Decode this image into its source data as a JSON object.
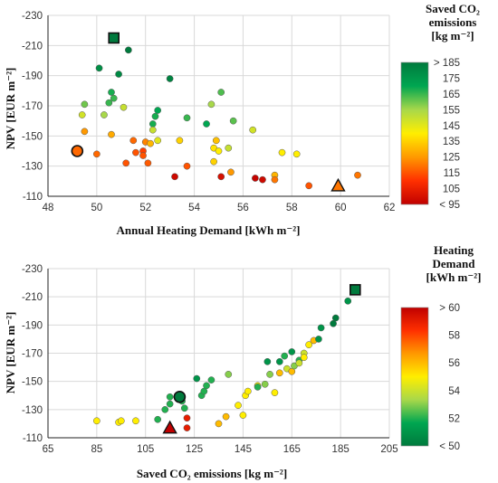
{
  "chart_data": [
    {
      "type": "scatter",
      "xlabel": "Annual Heating Demand [kWh m⁻²]",
      "ylabel": "NPV [EUR m⁻²]",
      "xlim": [
        48,
        62
      ],
      "ylim": [
        -110,
        -230
      ],
      "x_ticks": [
        48,
        50,
        52,
        54,
        56,
        58,
        60,
        62
      ],
      "y_ticks": [
        -230,
        -210,
        -190,
        -170,
        -150,
        -130,
        -110
      ],
      "x_tick_labels": [
        "48",
        "50",
        "52",
        "54",
        "56",
        "58",
        "60",
        "62"
      ],
      "y_tick_labels": [
        "-230",
        "-210",
        "-190",
        "-170",
        "-150",
        "-130",
        "-110"
      ],
      "grid": true,
      "color_variable": "Saved CO₂ emissions",
      "colorbar": {
        "title_lines": [
          "Saved CO₂",
          "emissions",
          "[kg m⁻²]"
        ],
        "range": [
          95,
          185
        ],
        "ticks": [
          95,
          105,
          115,
          125,
          135,
          145,
          155,
          165,
          175,
          185
        ],
        "tick_labels": [
          "< 95",
          "105",
          "115",
          "125",
          "135",
          "145",
          "155",
          "165",
          "175",
          "> 185"
        ],
        "colors": [
          "#c00000",
          "#ff3000",
          "#ff9900",
          "#ffee00",
          "#a8d84a",
          "#00a651",
          "#007a3d"
        ]
      },
      "points": [
        {
          "x": 51.3,
          "y": -207,
          "c": 185
        },
        {
          "x": 50.1,
          "y": -195,
          "c": 178
        },
        {
          "x": 50.9,
          "y": -191,
          "c": 180
        },
        {
          "x": 53.0,
          "y": -188,
          "c": 182
        },
        {
          "x": 50.6,
          "y": -179,
          "c": 168
        },
        {
          "x": 50.7,
          "y": -175,
          "c": 165
        },
        {
          "x": 55.1,
          "y": -179,
          "c": 163
        },
        {
          "x": 49.5,
          "y": -171,
          "c": 160
        },
        {
          "x": 50.5,
          "y": -172,
          "c": 165
        },
        {
          "x": 51.1,
          "y": -169,
          "c": 150
        },
        {
          "x": 52.5,
          "y": -167,
          "c": 170
        },
        {
          "x": 52.4,
          "y": -163,
          "c": 168
        },
        {
          "x": 53.7,
          "y": -162,
          "c": 165
        },
        {
          "x": 55.6,
          "y": -160,
          "c": 162
        },
        {
          "x": 49.4,
          "y": -164,
          "c": 148
        },
        {
          "x": 50.3,
          "y": -164,
          "c": 155
        },
        {
          "x": 54.7,
          "y": -171,
          "c": 155
        },
        {
          "x": 54.5,
          "y": -158,
          "c": 170
        },
        {
          "x": 52.3,
          "y": -158,
          "c": 168
        },
        {
          "x": 52.3,
          "y": -154,
          "c": 150
        },
        {
          "x": 56.4,
          "y": -154,
          "c": 148
        },
        {
          "x": 49.5,
          "y": -153,
          "c": 125
        },
        {
          "x": 50.6,
          "y": -151,
          "c": 128
        },
        {
          "x": 52.0,
          "y": -146,
          "c": 122
        },
        {
          "x": 51.5,
          "y": -147,
          "c": 118
        },
        {
          "x": 52.2,
          "y": -145,
          "c": 130
        },
        {
          "x": 52.5,
          "y": -147,
          "c": 145
        },
        {
          "x": 53.4,
          "y": -147,
          "c": 135
        },
        {
          "x": 54.9,
          "y": -147,
          "c": 132
        },
        {
          "x": 54.8,
          "y": -142,
          "c": 138
        },
        {
          "x": 55.0,
          "y": -140,
          "c": 140
        },
        {
          "x": 55.4,
          "y": -142,
          "c": 150
        },
        {
          "x": 51.9,
          "y": -140,
          "c": 112
        },
        {
          "x": 51.6,
          "y": -139,
          "c": 115
        },
        {
          "x": 50.0,
          "y": -138,
          "c": 118
        },
        {
          "x": 51.9,
          "y": -137,
          "c": 115
        },
        {
          "x": 52.1,
          "y": -132,
          "c": 116
        },
        {
          "x": 51.2,
          "y": -132,
          "c": 115
        },
        {
          "x": 53.7,
          "y": -130,
          "c": 115
        },
        {
          "x": 54.8,
          "y": -133,
          "c": 135
        },
        {
          "x": 57.6,
          "y": -139,
          "c": 140
        },
        {
          "x": 58.2,
          "y": -138,
          "c": 140
        },
        {
          "x": 55.5,
          "y": -126,
          "c": 125
        },
        {
          "x": 57.3,
          "y": -124,
          "c": 130
        },
        {
          "x": 57.3,
          "y": -121,
          "c": 120
        },
        {
          "x": 53.2,
          "y": -123,
          "c": 98
        },
        {
          "x": 55.1,
          "y": -123,
          "c": 100
        },
        {
          "x": 56.5,
          "y": -122,
          "c": 96
        },
        {
          "x": 56.8,
          "y": -121,
          "c": 98
        },
        {
          "x": 58.7,
          "y": -117,
          "c": 115
        },
        {
          "x": 60.7,
          "y": -124,
          "c": 120
        }
      ],
      "highlighted_points": [
        {
          "x": 50.7,
          "y": -215,
          "c": 190,
          "marker": "square"
        },
        {
          "x": 49.2,
          "y": -140,
          "c": 118,
          "marker": "circle"
        },
        {
          "x": 59.9,
          "y": -117,
          "c": 120,
          "marker": "triangle"
        }
      ]
    },
    {
      "type": "scatter",
      "xlabel": "Saved CO₂ emissions [kg m⁻²]",
      "ylabel": "NPV [EUR m⁻²]",
      "xlim": [
        65,
        205
      ],
      "ylim": [
        -110,
        -230
      ],
      "x_ticks": [
        65,
        85,
        105,
        125,
        145,
        165,
        185,
        205
      ],
      "y_ticks": [
        -230,
        -210,
        -190,
        -170,
        -150,
        -130,
        -110
      ],
      "x_tick_labels": [
        "65",
        "85",
        "105",
        "125",
        "145",
        "165",
        "185",
        "205"
      ],
      "y_tick_labels": [
        "-230",
        "-210",
        "-190",
        "-170",
        "-150",
        "-130",
        "-110"
      ],
      "grid": true,
      "color_variable": "Heating Demand",
      "colorbar": {
        "title_lines": [
          "Heating",
          "Demand",
          "[kWh m⁻²]"
        ],
        "range": [
          50,
          60
        ],
        "ticks": [
          50,
          52,
          54,
          56,
          58,
          60
        ],
        "tick_labels": [
          "< 50",
          "52",
          "54",
          "56",
          "58",
          "> 60"
        ],
        "colors": [
          "#007a3d",
          "#00a651",
          "#a8d84a",
          "#ffee00",
          "#ff9900",
          "#ff3000",
          "#c00000"
        ]
      },
      "points": [
        {
          "x": 85,
          "y": -122,
          "c": 55
        },
        {
          "x": 94,
          "y": -121,
          "c": 55
        },
        {
          "x": 95,
          "y": -122,
          "c": 55
        },
        {
          "x": 101,
          "y": -122,
          "c": 55
        },
        {
          "x": 110,
          "y": -123,
          "c": 52
        },
        {
          "x": 113,
          "y": -130,
          "c": 52
        },
        {
          "x": 115,
          "y": -134,
          "c": 52
        },
        {
          "x": 115,
          "y": -139,
          "c": 52
        },
        {
          "x": 118,
          "y": -140,
          "c": 51
        },
        {
          "x": 120,
          "y": -136,
          "c": 52
        },
        {
          "x": 121,
          "y": -131,
          "c": 52
        },
        {
          "x": 122,
          "y": -117,
          "c": 59
        },
        {
          "x": 122,
          "y": -124,
          "c": 59
        },
        {
          "x": 126,
          "y": -152,
          "c": 51
        },
        {
          "x": 128,
          "y": -140,
          "c": 52
        },
        {
          "x": 129,
          "y": -143,
          "c": 52
        },
        {
          "x": 130,
          "y": -147,
          "c": 52
        },
        {
          "x": 132,
          "y": -151,
          "c": 52
        },
        {
          "x": 135,
          "y": -120,
          "c": 56
        },
        {
          "x": 138,
          "y": -125,
          "c": 56
        },
        {
          "x": 139,
          "y": -155,
          "c": 53
        },
        {
          "x": 143,
          "y": -133,
          "c": 55
        },
        {
          "x": 145,
          "y": -126,
          "c": 55
        },
        {
          "x": 146,
          "y": -140,
          "c": 55
        },
        {
          "x": 147,
          "y": -143,
          "c": 55
        },
        {
          "x": 151,
          "y": -147,
          "c": 55
        },
        {
          "x": 151,
          "y": -146,
          "c": 52
        },
        {
          "x": 154,
          "y": -148,
          "c": 53
        },
        {
          "x": 155,
          "y": -164,
          "c": 51
        },
        {
          "x": 156,
          "y": -155,
          "c": 53
        },
        {
          "x": 158,
          "y": -142,
          "c": 55
        },
        {
          "x": 160,
          "y": -164,
          "c": 51
        },
        {
          "x": 160,
          "y": -156,
          "c": 56
        },
        {
          "x": 162,
          "y": -168,
          "c": 52
        },
        {
          "x": 163,
          "y": -159,
          "c": 54
        },
        {
          "x": 165,
          "y": -171,
          "c": 51
        },
        {
          "x": 165,
          "y": -157,
          "c": 56
        },
        {
          "x": 166,
          "y": -161,
          "c": 53
        },
        {
          "x": 168,
          "y": -165,
          "c": 52
        },
        {
          "x": 168,
          "y": -163,
          "c": 54
        },
        {
          "x": 170,
          "y": -170,
          "c": 54
        },
        {
          "x": 170,
          "y": -167,
          "c": 55
        },
        {
          "x": 172,
          "y": -176,
          "c": 55
        },
        {
          "x": 174,
          "y": -179,
          "c": 56
        },
        {
          "x": 176,
          "y": -180,
          "c": 51
        },
        {
          "x": 177,
          "y": -188,
          "c": 51
        },
        {
          "x": 182,
          "y": -191,
          "c": 50
        },
        {
          "x": 183,
          "y": -195,
          "c": 50
        },
        {
          "x": 188,
          "y": -207,
          "c": 51
        }
      ],
      "highlighted_points": [
        {
          "x": 191,
          "y": -215,
          "c": 50,
          "marker": "square"
        },
        {
          "x": 119,
          "y": -139,
          "c": 49,
          "marker": "circle"
        },
        {
          "x": 115,
          "y": -117,
          "c": 60,
          "marker": "triangle"
        }
      ]
    }
  ]
}
